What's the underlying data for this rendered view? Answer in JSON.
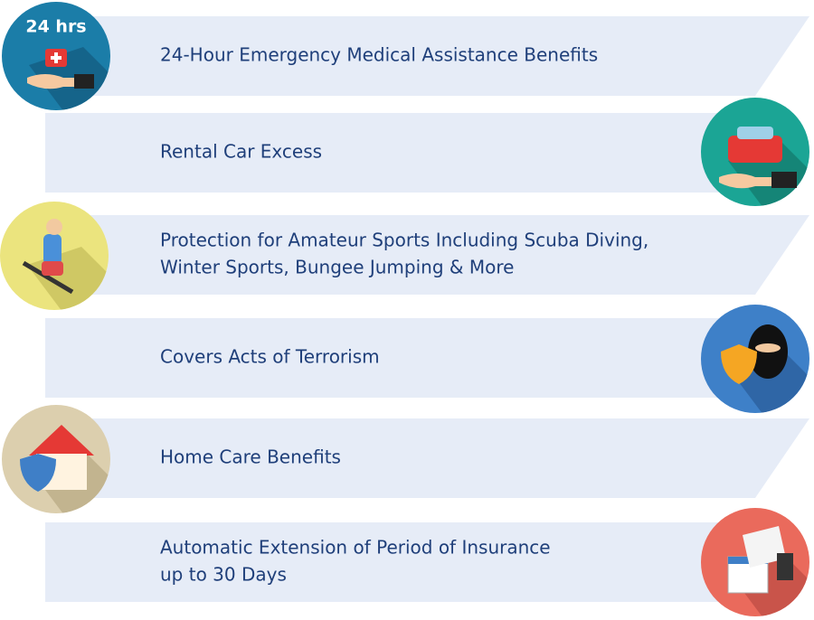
{
  "items": [
    {
      "badge": "24 hrs",
      "lines": [
        "24-Hour Emergency Medical Assistance Benefits"
      ]
    },
    {
      "lines": [
        "Rental Car Excess"
      ]
    },
    {
      "lines": [
        "Protection for Amateur Sports Including Scuba Diving,",
        "Winter Sports, Bungee Jumping & More"
      ]
    },
    {
      "lines": [
        "Covers Acts of Terrorism"
      ]
    },
    {
      "lines": [
        "Home Care Benefits"
      ]
    },
    {
      "lines": [
        "Automatic Extension of Period of Insurance",
        "up to 30 Days"
      ]
    }
  ]
}
